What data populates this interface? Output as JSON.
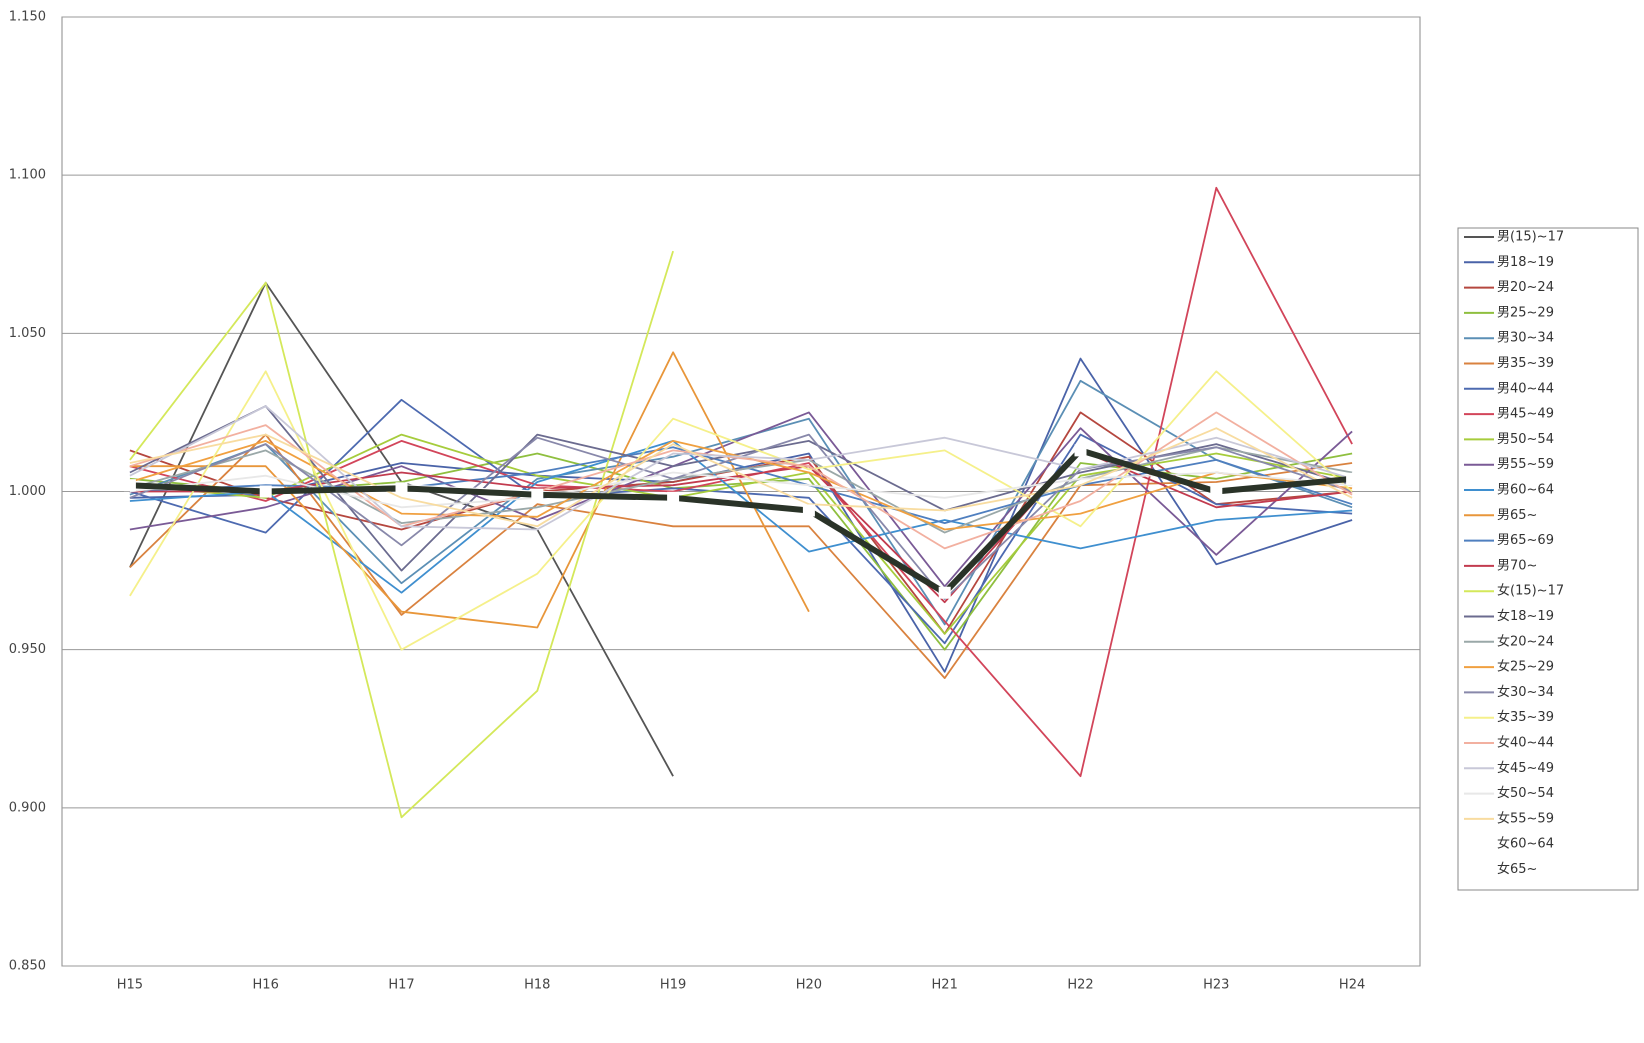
{
  "chart_data": {
    "type": "line",
    "categories": [
      "H15",
      "H16",
      "H17",
      "H18",
      "H19",
      "H20",
      "H21",
      "H22",
      "H23",
      "H24"
    ],
    "ylim": [
      0.85,
      1.15
    ],
    "yticks": [
      {
        "value": 0.85,
        "label": "0.850"
      },
      {
        "value": 0.9,
        "label": "0.900"
      },
      {
        "value": 0.95,
        "label": "0.950"
      },
      {
        "value": 1.0,
        "label": "1.000"
      },
      {
        "value": 1.05,
        "label": "1.050"
      },
      {
        "value": 1.1,
        "label": "1.100"
      },
      {
        "value": 1.15,
        "label": "1.150"
      }
    ],
    "grid": true,
    "legend": "right",
    "series": [
      {
        "name": "男(15)~17",
        "color": "#555555",
        "values": [
          0.976,
          1.066,
          1.003,
          0.988,
          0.91,
          null,
          null,
          null,
          null,
          null
        ]
      },
      {
        "name": "男18~19",
        "color": "#4a63a8",
        "values": [
          0.998,
          0.999,
          1.009,
          1.005,
          1.003,
          1.012,
          0.943,
          1.042,
          0.977,
          0.991
        ]
      },
      {
        "name": "男20~24",
        "color": "#b5473f",
        "values": [
          1.013,
          0.998,
          0.988,
          1.0,
          1.003,
          1.011,
          0.955,
          1.025,
          0.996,
          1.0
        ]
      },
      {
        "name": "男25~29",
        "color": "#8fbf3f",
        "values": [
          1.004,
          1.0,
          1.003,
          1.012,
          1.001,
          1.004,
          0.95,
          1.009,
          1.004,
          1.012
        ]
      },
      {
        "name": "男30~34",
        "color": "#5b8fb5",
        "values": [
          0.999,
          1.015,
          0.971,
          1.004,
          1.011,
          1.023,
          0.958,
          1.035,
          1.01,
          0.995
        ]
      },
      {
        "name": "男35~39",
        "color": "#d9823f",
        "values": [
          0.976,
          1.018,
          0.961,
          0.996,
          0.989,
          0.989,
          0.941,
          1.002,
          1.003,
          1.009
        ]
      },
      {
        "name": "男40~44",
        "color": "#4d6ab0",
        "values": [
          1.0,
          0.987,
          1.029,
          0.998,
          1.001,
          0.998,
          0.952,
          1.018,
          0.996,
          0.993
        ]
      },
      {
        "name": "男45~49",
        "color": "#d2455a",
        "values": [
          1.008,
          0.997,
          1.016,
          1.002,
          1.0,
          1.009,
          0.959,
          0.91,
          1.096,
          1.015
        ]
      },
      {
        "name": "男50~54",
        "color": "#a6cc3c",
        "values": [
          1.002,
          0.998,
          1.018,
          1.005,
          0.998,
          1.006,
          0.955,
          1.005,
          1.012,
          1.004
        ]
      },
      {
        "name": "男55~59",
        "color": "#7a5a96",
        "values": [
          0.988,
          0.995,
          1.008,
          0.991,
          1.008,
          1.025,
          0.97,
          1.02,
          0.98,
          1.019
        ]
      },
      {
        "name": "男60~64",
        "color": "#3f8fcf",
        "values": [
          0.997,
          1.0,
          0.968,
          1.003,
          1.016,
          0.981,
          0.991,
          0.982,
          0.991,
          0.994
        ]
      },
      {
        "name": "男65~",
        "color": "#e8963a",
        "values": [
          1.008,
          1.008,
          0.962,
          0.957,
          1.044,
          0.962,
          null,
          null,
          null,
          null
        ]
      },
      {
        "name": "男65~69",
        "color": "#4f7fbf",
        "values": [
          1.0,
          1.002,
          1.001,
          1.006,
          1.014,
          1.002,
          0.99,
          1.002,
          1.01,
          0.996
        ]
      },
      {
        "name": "男70~",
        "color": "#c23b4f",
        "values": [
          1.0,
          1.0,
          1.006,
          1.001,
          1.002,
          1.008,
          0.965,
          1.013,
          0.995,
          1.0
        ]
      },
      {
        "name": "女(15)~17",
        "color": "#d4e85a",
        "values": [
          1.01,
          1.066,
          0.897,
          0.937,
          1.076,
          null,
          null,
          null,
          null,
          null
        ]
      },
      {
        "name": "女18~19",
        "color": "#6b6b8f",
        "values": [
          1.006,
          1.027,
          0.975,
          1.018,
          1.008,
          1.016,
          0.994,
          1.006,
          1.015,
          1.002
        ]
      },
      {
        "name": "女20~24",
        "color": "#9aa8a8",
        "values": [
          1.001,
          1.013,
          0.99,
          0.995,
          1.004,
          1.01,
          0.987,
          1.004,
          1.014,
          1.006
        ]
      },
      {
        "name": "女25~29",
        "color": "#f0a040",
        "values": [
          1.003,
          1.016,
          0.993,
          0.992,
          1.016,
          1.006,
          0.988,
          0.993,
          1.006,
          1.001
        ]
      },
      {
        "name": "女30~34",
        "color": "#8888aa",
        "values": [
          0.998,
          1.015,
          0.983,
          1.017,
          1.004,
          1.018,
          0.966,
          1.007,
          1.014,
          1.0
        ]
      },
      {
        "name": "女35~39",
        "color": "#f5f08a",
        "values": [
          0.967,
          1.038,
          0.95,
          0.974,
          1.023,
          1.007,
          1.013,
          0.989,
          1.038,
          1.0
        ]
      },
      {
        "name": "女40~44",
        "color": "#f2b0a0",
        "values": [
          1.008,
          1.021,
          0.989,
          1.0,
          1.013,
          1.008,
          0.982,
          0.997,
          1.025,
          0.999
        ]
      },
      {
        "name": "女45~49",
        "color": "#c8c8d8",
        "values": [
          1.005,
          1.027,
          0.989,
          0.988,
          1.012,
          1.01,
          1.017,
          1.007,
          1.017,
          1.004
        ]
      },
      {
        "name": "女50~54",
        "color": "#e8e8e8",
        "values": [
          1.0,
          1.005,
          0.995,
          0.998,
          1.006,
          1.002,
          0.998,
          1.004,
          1.006,
          1.002
        ]
      },
      {
        "name": "女55~59",
        "color": "#f8dca0",
        "values": [
          1.009,
          1.018,
          0.998,
          0.989,
          1.015,
          0.996,
          0.994,
          1.002,
          1.02,
          0.998
        ]
      },
      {
        "name": "女60~64",
        "color": "#ffffff",
        "values": [
          1.001,
          1.0,
          1.002,
          1.0,
          0.998,
          0.993,
          0.968,
          1.013,
          1.0,
          1.004
        ]
      },
      {
        "name": "女65~",
        "color": "#ffffff",
        "values": [
          1.002,
          1.0,
          1.001,
          0.999,
          0.998,
          0.994,
          0.968,
          1.013,
          1.0,
          1.004
        ]
      },
      {
        "color": "#2a3328",
        "values": [
          1.002,
          1.0,
          1.001,
          0.999,
          0.998,
          0.994,
          0.968,
          1.013,
          1.0,
          1.004
        ]
      }
    ]
  }
}
